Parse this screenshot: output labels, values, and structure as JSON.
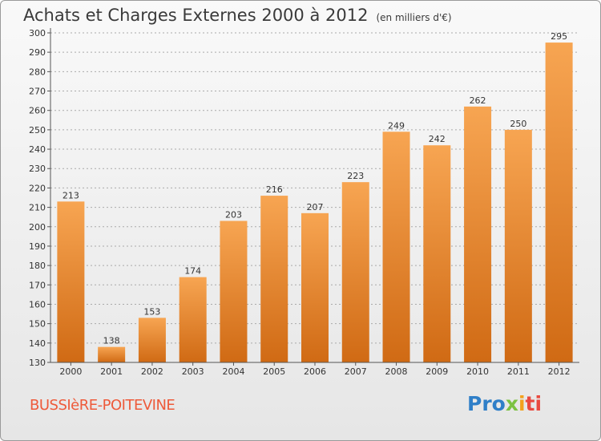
{
  "header": {
    "title": "Achats et Charges Externes 2000 à 2012",
    "unit": "(en milliers d'€)"
  },
  "footer": {
    "commune": "BUSSIèRE-POITEVINE",
    "logo": {
      "p1": "Pro",
      "p2": "x",
      "p3": "i",
      "p4": "ti"
    }
  },
  "colors": {
    "bar_top": "#f7a552",
    "bar_bottom": "#d06a14",
    "axis": "#555555",
    "grid": "#aaaaaa"
  },
  "chart_data": {
    "type": "bar",
    "title": "Achats et Charges Externes 2000 à 2012",
    "ylabel": "",
    "xlabel": "",
    "categories": [
      "2000",
      "2001",
      "2002",
      "2003",
      "2004",
      "2005",
      "2006",
      "2007",
      "2008",
      "2009",
      "2010",
      "2011",
      "2012"
    ],
    "values": [
      213,
      138,
      153,
      174,
      203,
      216,
      207,
      223,
      249,
      242,
      262,
      250,
      295
    ],
    "ylim": [
      130,
      300
    ],
    "yticks": [
      130,
      140,
      150,
      160,
      170,
      180,
      190,
      200,
      210,
      220,
      230,
      240,
      250,
      260,
      270,
      280,
      290,
      300
    ],
    "grid": "horizontal dashed",
    "data_labels": true
  }
}
